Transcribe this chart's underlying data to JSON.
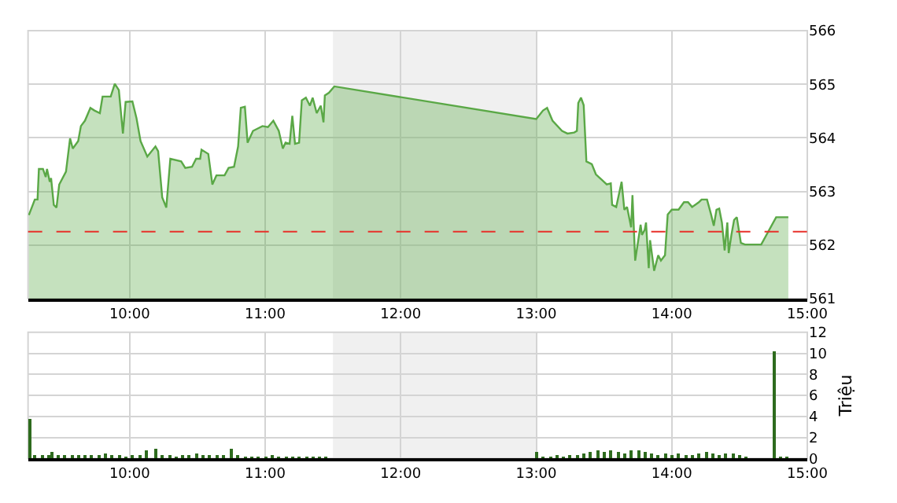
{
  "chart_data": [
    {
      "type": "area",
      "x": [
        9.256,
        9.3,
        9.32,
        9.33,
        9.36,
        9.38,
        9.39,
        9.41,
        9.42,
        9.44,
        9.46,
        9.48,
        9.53,
        9.56,
        9.58,
        9.62,
        9.64,
        9.67,
        9.71,
        9.74,
        9.78,
        9.8,
        9.86,
        9.89,
        9.92,
        9.95,
        9.97,
        10.02,
        10.05,
        10.08,
        10.13,
        10.19,
        10.21,
        10.24,
        10.27,
        10.3,
        10.38,
        10.41,
        10.46,
        10.49,
        10.52,
        10.53,
        10.58,
        10.61,
        10.64,
        10.7,
        10.73,
        10.77,
        10.8,
        10.82,
        10.85,
        10.87,
        10.91,
        10.98,
        11.02,
        11.06,
        11.1,
        11.13,
        11.15,
        11.18,
        11.2,
        11.22,
        11.25,
        11.27,
        11.3,
        11.33,
        11.35,
        11.38,
        11.41,
        11.43,
        11.44,
        11.47,
        11.51,
        13.0,
        13.05,
        13.08,
        13.12,
        13.19,
        13.23,
        13.28,
        13.3,
        13.31,
        13.33,
        13.35,
        13.37,
        13.41,
        13.44,
        13.52,
        13.55,
        13.56,
        13.59,
        13.63,
        13.65,
        13.67,
        13.7,
        13.71,
        13.73,
        13.77,
        13.78,
        13.8,
        13.81,
        13.83,
        13.84,
        13.87,
        13.9,
        13.92,
        13.95,
        13.97,
        14.0,
        14.05,
        14.09,
        14.12,
        14.15,
        14.2,
        14.22,
        14.26,
        14.29,
        14.31,
        14.33,
        14.35,
        14.37,
        14.39,
        14.41,
        14.42,
        14.44,
        14.46,
        14.48,
        14.51,
        14.54,
        14.66,
        14.77,
        14.86
      ],
      "series": [
        {
          "color": "#5aa846",
          "values": [
            562.56,
            562.85,
            562.85,
            563.42,
            563.42,
            563.27,
            563.42,
            563.18,
            563.25,
            562.75,
            562.7,
            563.13,
            563.37,
            563.99,
            563.8,
            563.94,
            564.22,
            564.32,
            564.56,
            564.51,
            564.46,
            564.77,
            564.77,
            565.01,
            564.89,
            564.08,
            564.67,
            564.68,
            564.37,
            563.94,
            563.65,
            563.84,
            563.75,
            562.89,
            562.7,
            563.61,
            563.56,
            563.44,
            563.46,
            563.61,
            563.61,
            563.78,
            563.7,
            563.13,
            563.3,
            563.3,
            563.44,
            563.46,
            563.84,
            564.56,
            564.58,
            563.91,
            564.13,
            564.22,
            564.2,
            564.32,
            564.13,
            563.8,
            563.91,
            563.89,
            564.41,
            563.89,
            563.91,
            564.7,
            564.75,
            564.6,
            564.75,
            564.46,
            564.6,
            564.29,
            564.79,
            564.84,
            564.96,
            564.35,
            564.51,
            564.56,
            564.32,
            564.13,
            564.08,
            564.1,
            564.13,
            564.65,
            564.75,
            564.61,
            563.56,
            563.51,
            563.32,
            563.13,
            563.15,
            562.75,
            562.71,
            563.18,
            562.66,
            562.71,
            562.33,
            562.93,
            561.71,
            562.38,
            562.19,
            562.28,
            562.42,
            561.57,
            562.09,
            561.52,
            561.81,
            561.71,
            561.81,
            562.57,
            562.66,
            562.66,
            562.8,
            562.8,
            562.71,
            562.8,
            562.85,
            562.85,
            562.57,
            562.36,
            562.66,
            562.68,
            562.42,
            561.9,
            562.42,
            561.85,
            562.19,
            562.47,
            562.52,
            562.04,
            562.01,
            562.01,
            562.52,
            562.52
          ]
        }
      ],
      "xlim": [
        9.25,
        15
      ],
      "xticks": [
        {
          "value": 10,
          "label": "10:00"
        },
        {
          "value": 11,
          "label": "11:00"
        },
        {
          "value": 12,
          "label": "12:00"
        },
        {
          "value": 13,
          "label": "13:00"
        },
        {
          "value": 14,
          "label": "14:00"
        },
        {
          "value": 15,
          "label": "15:00"
        }
      ],
      "ylim": [
        561,
        566
      ],
      "yticks": [
        561,
        562,
        563,
        564,
        565,
        566
      ],
      "grid": true,
      "bands": [
        {
          "axis": "x",
          "from": 11.5,
          "to": 13,
          "color": "#f0f0f0"
        }
      ],
      "ref_lines": [
        {
          "axis": "y",
          "value": 562.25,
          "color": "#e8302a",
          "line_style": "dashed"
        }
      ]
    },
    {
      "type": "bar",
      "x": [
        9.266,
        9.3,
        9.35,
        9.4,
        9.43,
        9.47,
        9.52,
        9.57,
        9.62,
        9.67,
        9.72,
        9.77,
        9.82,
        9.87,
        9.92,
        9.97,
        10.02,
        10.07,
        10.12,
        10.19,
        10.24,
        10.29,
        10.34,
        10.39,
        10.44,
        10.49,
        10.54,
        10.59,
        10.64,
        10.69,
        10.75,
        10.8,
        10.85,
        10.9,
        10.95,
        11.0,
        11.05,
        11.1,
        11.15,
        11.2,
        11.25,
        11.3,
        11.35,
        11.4,
        11.45,
        13.0,
        13.05,
        13.1,
        13.15,
        13.2,
        13.25,
        13.3,
        13.35,
        13.4,
        13.45,
        13.5,
        13.55,
        13.6,
        13.65,
        13.7,
        13.75,
        13.8,
        13.85,
        13.9,
        13.95,
        14.0,
        14.05,
        14.1,
        14.15,
        14.2,
        14.25,
        14.3,
        14.35,
        14.4,
        14.45,
        14.5,
        14.55,
        14.75,
        14.8,
        14.85
      ],
      "values": [
        3.8,
        0.3,
        0.3,
        0.4,
        0.7,
        0.3,
        0.4,
        0.3,
        0.4,
        0.3,
        0.3,
        0.4,
        0.5,
        0.3,
        0.3,
        0.2,
        0.3,
        0.4,
        0.8,
        1.0,
        0.3,
        0.3,
        0.2,
        0.3,
        0.4,
        0.5,
        0.4,
        0.3,
        0.3,
        0.3,
        1.0,
        0.3,
        0.2,
        0.2,
        0.2,
        0.2,
        0.3,
        0.2,
        0.2,
        0.2,
        0.2,
        0.2,
        0.2,
        0.2,
        0.2,
        0.7,
        0.2,
        0.2,
        0.3,
        0.2,
        0.3,
        0.3,
        0.5,
        0.7,
        0.8,
        0.7,
        0.8,
        0.7,
        0.5,
        0.8,
        0.8,
        0.6,
        0.5,
        0.4,
        0.5,
        0.4,
        0.5,
        0.4,
        0.4,
        0.5,
        0.6,
        0.5,
        0.4,
        0.5,
        0.5,
        0.3,
        0.1,
        10.2,
        0.2,
        0.1
      ],
      "color": "#2e6b1e",
      "xlim": [
        9.25,
        15
      ],
      "xticks": [
        {
          "value": 10,
          "label": "10:00"
        },
        {
          "value": 11,
          "label": "11:00"
        },
        {
          "value": 12,
          "label": "12:00"
        },
        {
          "value": 13,
          "label": "13:00"
        },
        {
          "value": 14,
          "label": "14:00"
        },
        {
          "value": 15,
          "label": "15:00"
        }
      ],
      "ylim": [
        0,
        12
      ],
      "yticks": [
        0,
        2,
        4,
        6,
        8,
        10,
        12
      ],
      "grid": true,
      "ylabel": "Triệu",
      "bands": [
        {
          "axis": "x",
          "from": 11.5,
          "to": 13,
          "color": "#f0f0f0"
        }
      ]
    }
  ]
}
